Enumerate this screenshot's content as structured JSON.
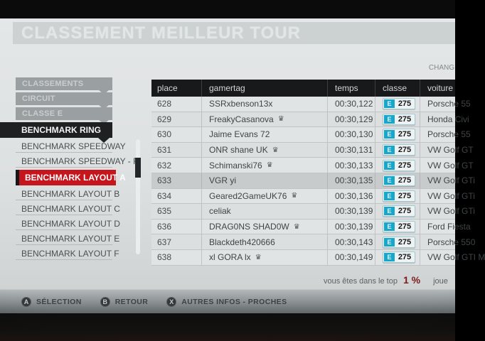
{
  "title": "CLASSEMENT MEILLEUR TOUR",
  "top_right_fragment": "CHANG",
  "sidebar": {
    "items": [
      {
        "label": "CLASSEMENTS",
        "style": "gray"
      },
      {
        "label": "CIRCUIT",
        "style": "gray"
      },
      {
        "label": "CLASSE E",
        "style": "gray"
      },
      {
        "label": "BENCHMARK RING",
        "style": "black"
      },
      {
        "label": "BENCHMARK SPEEDWAY",
        "style": "plain"
      },
      {
        "label": "BENCHMARK SPEEDWAY - R",
        "style": "plain"
      },
      {
        "label": "BENCHMARK LAYOUT A",
        "style": "red"
      },
      {
        "label": "BENCHMARK LAYOUT B",
        "style": "plain"
      },
      {
        "label": "BENCHMARK LAYOUT C",
        "style": "plain"
      },
      {
        "label": "BENCHMARK LAYOUT D",
        "style": "plain"
      },
      {
        "label": "BENCHMARK LAYOUT E",
        "style": "plain"
      },
      {
        "label": "BENCHMARK LAYOUT F",
        "style": "plain"
      }
    ]
  },
  "table": {
    "columns": [
      "place",
      "gamertag",
      "temps",
      "classe",
      "voiture"
    ],
    "rows": [
      {
        "place": "628",
        "gamertag": "SSRxbenson13x",
        "crown": false,
        "temps": "00:30,122",
        "classe_letter": "E",
        "classe_value": "275",
        "voiture": "Porsche 55",
        "highlight": false
      },
      {
        "place": "629",
        "gamertag": "FreakyCasanova",
        "crown": true,
        "temps": "00:30,129",
        "classe_letter": "E",
        "classe_value": "275",
        "voiture": "Honda Civi",
        "highlight": false
      },
      {
        "place": "630",
        "gamertag": "Jaime Evans 72",
        "crown": false,
        "temps": "00:30,130",
        "classe_letter": "E",
        "classe_value": "275",
        "voiture": "Porsche 55",
        "highlight": false
      },
      {
        "place": "631",
        "gamertag": "ONR shane UK",
        "crown": true,
        "temps": "00:30,131",
        "classe_letter": "E",
        "classe_value": "275",
        "voiture": "VW Golf GT",
        "highlight": false
      },
      {
        "place": "632",
        "gamertag": "Schimanski76",
        "crown": true,
        "temps": "00:30,133",
        "classe_letter": "E",
        "classe_value": "275",
        "voiture": "VW Golf GT",
        "highlight": false
      },
      {
        "place": "633",
        "gamertag": "VGR yi",
        "crown": false,
        "temps": "00:30,135",
        "classe_letter": "E",
        "classe_value": "275",
        "voiture": "VW Golf GTi",
        "highlight": true
      },
      {
        "place": "634",
        "gamertag": "Geared2GameUK76",
        "crown": true,
        "temps": "00:30,136",
        "classe_letter": "E",
        "classe_value": "275",
        "voiture": "VW Golf GTi",
        "highlight": false
      },
      {
        "place": "635",
        "gamertag": "celiak",
        "crown": false,
        "temps": "00:30,139",
        "classe_letter": "E",
        "classe_value": "275",
        "voiture": "VW Golf GTi",
        "highlight": false
      },
      {
        "place": "636",
        "gamertag": "DRAG0NS SHAD0W",
        "crown": true,
        "temps": "00:30,139",
        "classe_letter": "E",
        "classe_value": "275",
        "voiture": "Ford Fiesta",
        "highlight": false
      },
      {
        "place": "637",
        "gamertag": "Blackdeth420666",
        "crown": false,
        "temps": "00:30,143",
        "classe_letter": "E",
        "classe_value": "275",
        "voiture": "Porsche 550",
        "highlight": false
      },
      {
        "place": "638",
        "gamertag": "xl GORA lx",
        "crown": true,
        "temps": "00:30,149",
        "classe_letter": "E",
        "classe_value": "275",
        "voiture": "VW Golf GTI M",
        "highlight": false
      }
    ]
  },
  "footer_note": {
    "prefix": "vous êtes dans le top",
    "value": "1 %",
    "suffix": "joue"
  },
  "controls": [
    {
      "button": "A",
      "label": "SÉLECTION"
    },
    {
      "button": "B",
      "label": "RETOUR"
    },
    {
      "button": "X",
      "label": "AUTRES INFOS - PROCHES"
    }
  ],
  "icons": {
    "crown": "♛"
  },
  "colors": {
    "accent_red": "#c5151d",
    "class_badge_cyan": "#18a7cb",
    "percent_red": "#7c1a1a",
    "header_black": "#17191b",
    "highlight_row_gray": "#c7cbcc"
  }
}
